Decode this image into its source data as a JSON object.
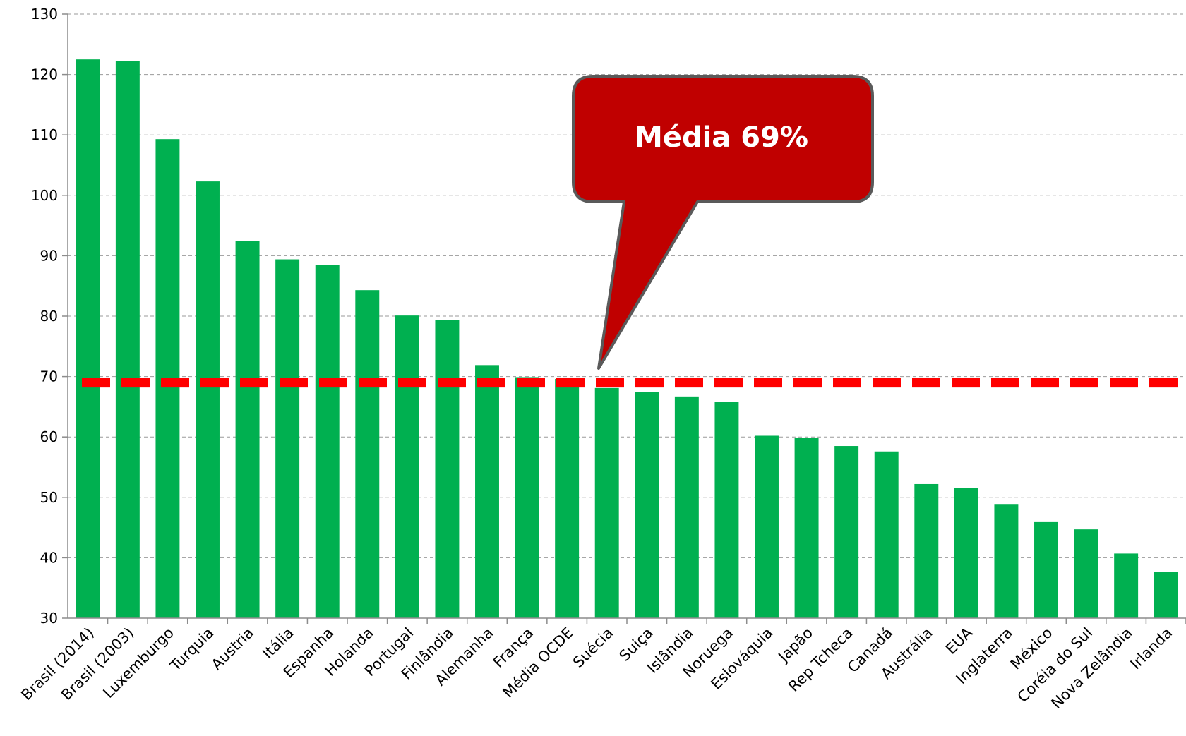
{
  "chart_data": {
    "type": "bar",
    "title": "",
    "xlabel": "",
    "ylabel": "",
    "ylim": [
      30,
      130
    ],
    "yticks": [
      30,
      40,
      50,
      60,
      70,
      80,
      90,
      100,
      110,
      120,
      130
    ],
    "grid": true,
    "categories": [
      "Brasil (2014)",
      "Brasil (2003)",
      "Luxemburgo",
      "Turquia",
      "Austria",
      "Itália",
      "Espanha",
      "Holanda",
      "Portugal",
      "Finlândia",
      "Alemanha",
      "França",
      "Média OCDE",
      "Suécia",
      "Suiça",
      "Islândia",
      "Noruega",
      "Eslováquia",
      "Japão",
      "Rep Tcheca",
      "Canadá",
      "Austrália",
      "EUA",
      "Inglaterra",
      "México",
      "Coréia do Sul",
      "Nova Zelândia",
      "Irlanda"
    ],
    "values": [
      122.5,
      122.2,
      109.3,
      102.3,
      92.5,
      89.4,
      88.5,
      84.3,
      80.1,
      79.4,
      71.9,
      69.9,
      69.6,
      68.1,
      67.4,
      66.7,
      65.8,
      60.2,
      59.9,
      58.5,
      57.6,
      52.2,
      51.5,
      48.9,
      45.9,
      44.7,
      40.7,
      37.7
    ],
    "bar_color": "#00B050",
    "reference_line": {
      "value": 69,
      "color": "#FF0000",
      "style": "dashed"
    },
    "annotation": {
      "text": "Média 69%",
      "fill": "#C00000"
    }
  }
}
